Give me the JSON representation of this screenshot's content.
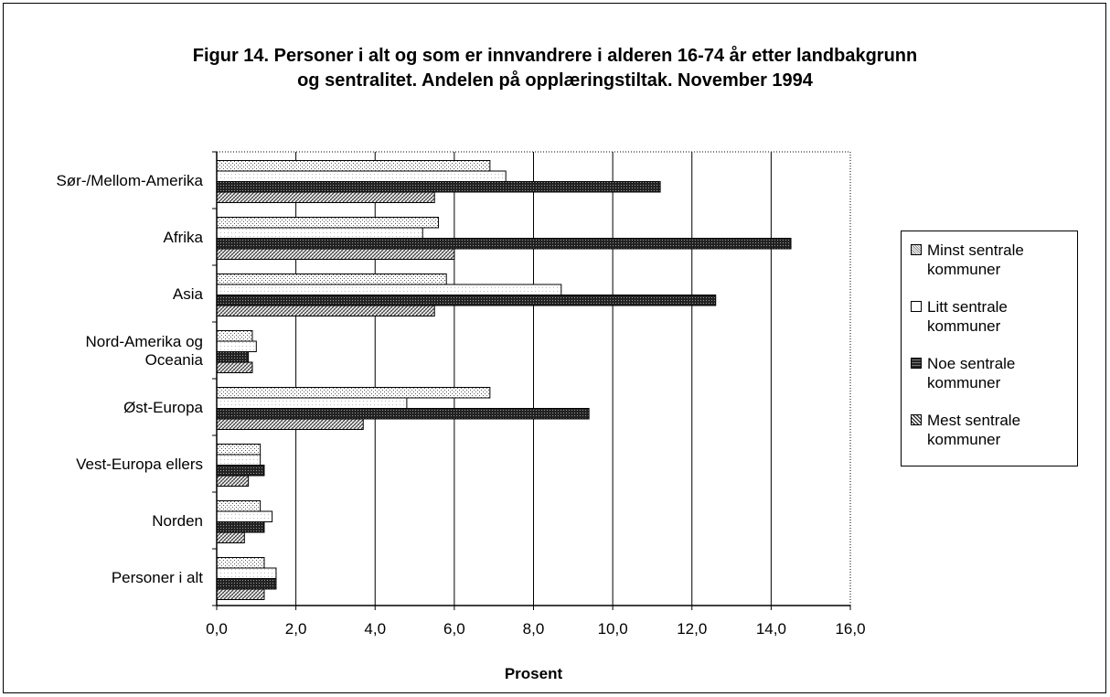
{
  "chart_data": {
    "type": "bar",
    "orientation": "horizontal",
    "title_line1": "Figur 14.  Personer i alt og som er innvandrere i alderen 16-74 år etter landbakgrunn",
    "title_line2": "og sentralitet. Andelen på opplæringstiltak. November 1994",
    "xlabel": "Prosent",
    "ylabel": "",
    "xlim": [
      0,
      16
    ],
    "x_ticks": [
      "0,0",
      "2,0",
      "4,0",
      "6,0",
      "8,0",
      "10,0",
      "12,0",
      "14,0",
      "16,0"
    ],
    "grid": "vertical",
    "legend_placement": "right",
    "categories": [
      [
        "Sør-/Mellom-Amerika"
      ],
      [
        "Afrika"
      ],
      [
        "Asia"
      ],
      [
        "Nord-Amerika og",
        "Oceania"
      ],
      [
        "Øst-Europa"
      ],
      [
        "Vest-Europa ellers"
      ],
      [
        "Norden"
      ],
      [
        "Personer i alt"
      ]
    ],
    "series": [
      {
        "name": [
          "Minst sentrale",
          "kommuner"
        ],
        "pattern": "dots-light",
        "values": [
          6.9,
          5.6,
          5.8,
          0.9,
          6.9,
          1.1,
          1.1,
          1.2
        ]
      },
      {
        "name": [
          "Litt sentrale",
          "kommuner"
        ],
        "pattern": "white",
        "values": [
          7.3,
          5.2,
          8.7,
          1.0,
          4.8,
          1.1,
          1.4,
          1.5
        ]
      },
      {
        "name": [
          "Noe sentrale",
          "kommuner"
        ],
        "pattern": "dark-grid",
        "values": [
          11.2,
          14.5,
          12.6,
          0.8,
          9.4,
          1.2,
          1.2,
          1.5
        ]
      },
      {
        "name": [
          "Mest sentrale",
          "kommuner"
        ],
        "pattern": "crosshatch",
        "values": [
          5.5,
          6.0,
          5.5,
          0.9,
          3.7,
          0.8,
          0.7,
          1.2
        ]
      }
    ]
  }
}
